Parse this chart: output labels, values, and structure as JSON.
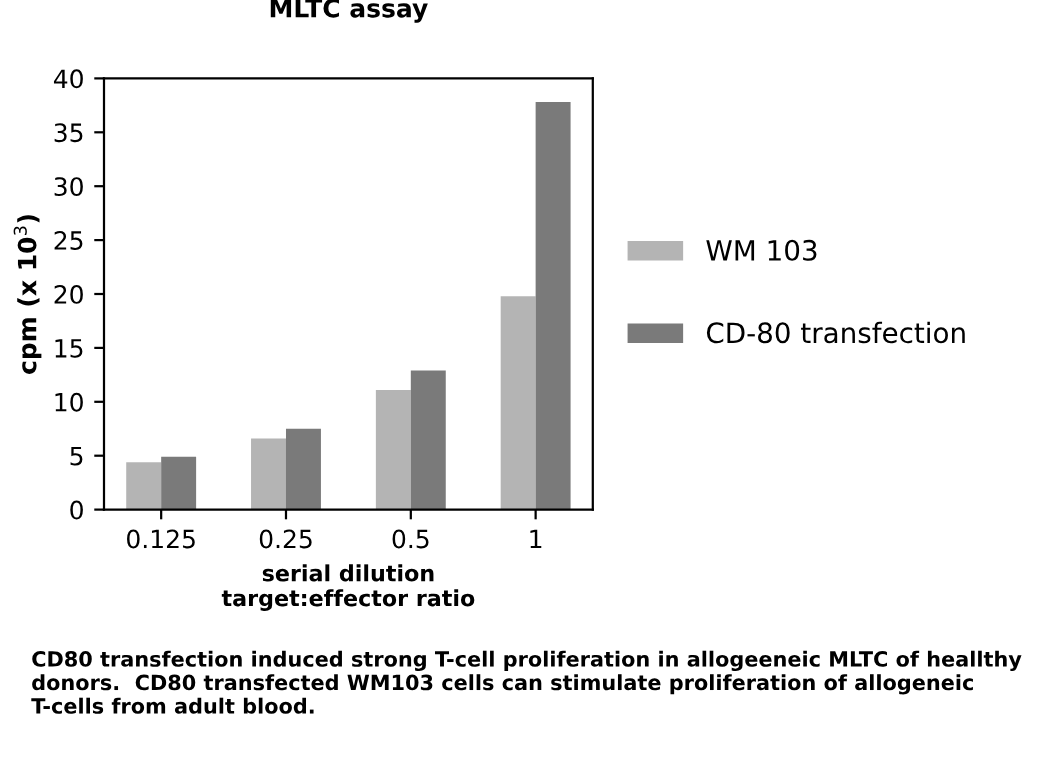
{
  "chart_data": {
    "type": "bar",
    "title": "MLTC assay",
    "xlabel": "serial dilution\ntarget:effector ratio",
    "ylabel": "cpm (x 10$^{3}$)",
    "categories": [
      "0.125",
      "0.25",
      "0.5",
      "1"
    ],
    "series": [
      {
        "name": "WM 103",
        "color": "#b4b4b4",
        "values": [
          4.4,
          6.6,
          11.1,
          19.8
        ]
      },
      {
        "name": "CD-80 transfection",
        "color": "#7a7a7a",
        "values": [
          4.9,
          7.5,
          12.9,
          37.8
        ]
      }
    ],
    "ylim": [
      0,
      40
    ],
    "yticks": [
      0,
      5,
      10,
      15,
      20,
      25,
      30,
      35,
      40
    ],
    "grid": false,
    "legend": "right",
    "annotations": [
      "CD80 transfection induced strong T-cell proliferation in allogeeneic MLTC of heallthy donors.  CD80 transfected WM103 cells can stimulate proliferation of allogeneic T-cells from adult blood."
    ]
  }
}
